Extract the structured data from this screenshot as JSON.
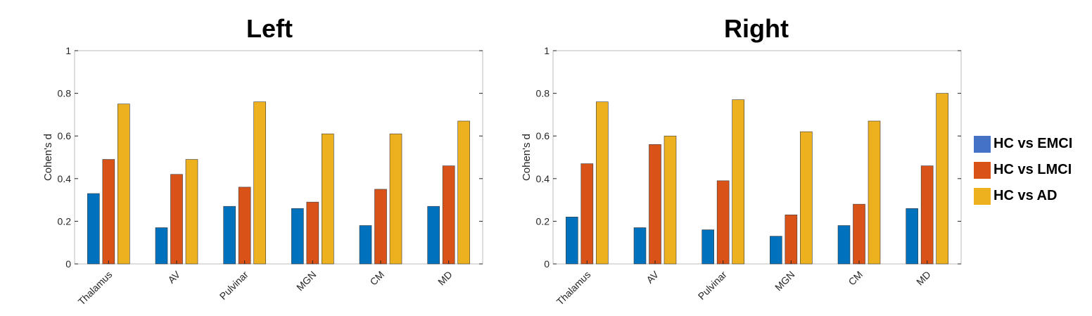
{
  "colors": {
    "HC vs EMCI": "#0072BD",
    "HC vs LMCI": "#D95319",
    "HC vs AD": "#EDB120",
    "legend_EMCI_swatch": "#4472C4"
  },
  "legend": {
    "items": [
      "HC vs EMCI",
      "HC vs LMCI",
      "HC vs AD"
    ]
  },
  "chart_data": [
    {
      "type": "bar",
      "title": "Left",
      "xlabel": "",
      "ylabel": "Cohen's d",
      "ylim": [
        0,
        1
      ],
      "yticks": [
        "0",
        "0.2",
        "0.4",
        "0.6",
        "0.8",
        "1"
      ],
      "categories": [
        "Thalamus",
        "AV",
        "Pulvinar",
        "MGN",
        "CM",
        "MD"
      ],
      "series": [
        {
          "name": "HC vs EMCI",
          "values": [
            0.33,
            0.17,
            0.27,
            0.26,
            0.18,
            0.27
          ]
        },
        {
          "name": "HC vs LMCI",
          "values": [
            0.49,
            0.42,
            0.36,
            0.29,
            0.35,
            0.46
          ]
        },
        {
          "name": "HC vs AD",
          "values": [
            0.75,
            0.49,
            0.76,
            0.61,
            0.61,
            0.67
          ]
        }
      ],
      "grid": false
    },
    {
      "type": "bar",
      "title": "Right",
      "xlabel": "",
      "ylabel": "Cohen's d",
      "ylim": [
        0,
        1
      ],
      "yticks": [
        "0",
        "0.2",
        "0.4",
        "0.6",
        "0.8",
        "1"
      ],
      "categories": [
        "Thalamus",
        "AV",
        "Pulvinar",
        "MGN",
        "CM",
        "MD"
      ],
      "series": [
        {
          "name": "HC vs EMCI",
          "values": [
            0.22,
            0.17,
            0.16,
            0.13,
            0.18,
            0.26
          ]
        },
        {
          "name": "HC vs LMCI",
          "values": [
            0.47,
            0.56,
            0.39,
            0.23,
            0.28,
            0.46
          ]
        },
        {
          "name": "HC vs AD",
          "values": [
            0.76,
            0.6,
            0.77,
            0.62,
            0.67,
            0.8
          ]
        }
      ],
      "grid": false
    }
  ]
}
